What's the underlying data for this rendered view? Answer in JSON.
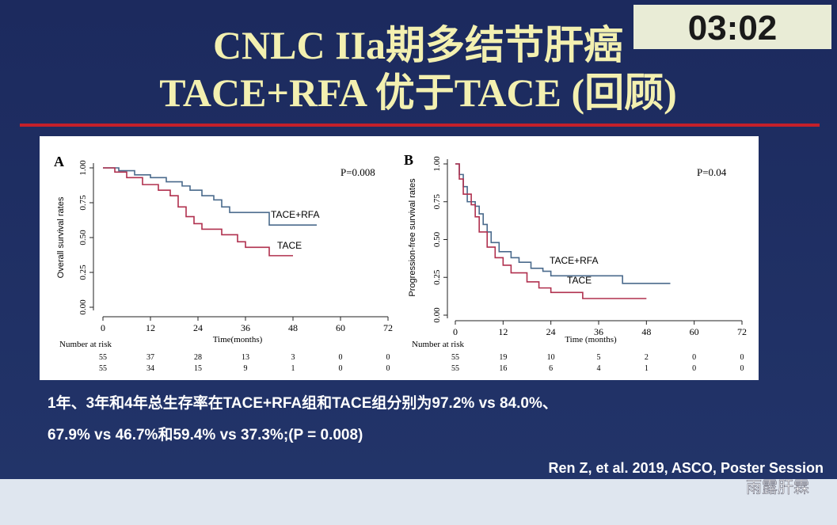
{
  "slide": {
    "title_line1": "CNLC IIa期多结节肝癌",
    "title_line2": "TACE+RFA 优于TACE (回顾)",
    "timer": "03:02",
    "summary_line1": "1年、3年和4年总生存率在TACE+RFA组和TACE组分别为97.2% vs 84.0%、",
    "summary_line2": "67.9% vs 46.7%和59.4% vs 37.3%;(P = 0.008)",
    "citation": "Ren Z, et al. 2019, ASCO, Poster Session",
    "watermark": "雨露肝霖"
  },
  "chart_data": [
    {
      "type": "line",
      "step": true,
      "panel": "A",
      "annotation": "P=0.008",
      "ylabel": "Overall survival rates",
      "xlabel": "Time(months)",
      "xlim": [
        0,
        72
      ],
      "xticks": [
        0,
        12,
        24,
        36,
        48,
        60,
        72
      ],
      "ylim": [
        0,
        1
      ],
      "yticks": [
        {
          "value": 0,
          "label": "0.00"
        },
        {
          "value": 0.25,
          "label": "0.25"
        },
        {
          "value": 0.5,
          "label": "0.50"
        },
        {
          "value": 0.75,
          "label": "0.75"
        },
        {
          "value": 1,
          "label": "1.00"
        }
      ],
      "series": [
        {
          "name": "TACE+RFA",
          "color": "#4a6a8c",
          "x": [
            0,
            4,
            4,
            8,
            8,
            12,
            12,
            16,
            16,
            20,
            20,
            22,
            22,
            25,
            25,
            28,
            28,
            30,
            30,
            32,
            32,
            42,
            42,
            54
          ],
          "values": [
            1,
            1,
            0.98,
            0.98,
            0.95,
            0.95,
            0.93,
            0.93,
            0.9,
            0.9,
            0.87,
            0.87,
            0.84,
            0.84,
            0.8,
            0.8,
            0.77,
            0.77,
            0.72,
            0.72,
            0.68,
            0.68,
            0.59,
            0.59
          ]
        },
        {
          "name": "TACE",
          "color": "#b0304e",
          "x": [
            0,
            3,
            3,
            6,
            6,
            10,
            10,
            14,
            14,
            17,
            17,
            19,
            19,
            21,
            21,
            23,
            23,
            25,
            25,
            30,
            30,
            34,
            34,
            36,
            36,
            42,
            42,
            48
          ],
          "values": [
            1,
            1,
            0.97,
            0.97,
            0.93,
            0.93,
            0.88,
            0.88,
            0.84,
            0.84,
            0.8,
            0.8,
            0.72,
            0.72,
            0.65,
            0.65,
            0.6,
            0.6,
            0.56,
            0.56,
            0.52,
            0.52,
            0.47,
            0.47,
            0.43,
            0.43,
            0.37,
            0.37
          ]
        }
      ],
      "risk_table": {
        "label": "Number at risk",
        "rows": [
          [
            55,
            37,
            28,
            13,
            3,
            0,
            0
          ],
          [
            55,
            34,
            15,
            9,
            1,
            0,
            0
          ]
        ]
      }
    },
    {
      "type": "line",
      "step": true,
      "panel": "B",
      "annotation": "P=0.04",
      "ylabel": "Progression-free survival rates",
      "xlabel": "Time (months)",
      "xlim": [
        0,
        72
      ],
      "xticks": [
        0,
        12,
        24,
        36,
        48,
        60,
        72
      ],
      "ylim": [
        0,
        1
      ],
      "yticks": [
        {
          "value": 0,
          "label": "0.00"
        },
        {
          "value": 0.25,
          "label": "0.25"
        },
        {
          "value": 0.5,
          "label": "0.50"
        },
        {
          "value": 0.75,
          "label": "0.75"
        },
        {
          "value": 1,
          "label": "1.00"
        }
      ],
      "series": [
        {
          "name": "TACE+RFA",
          "color": "#4a6a8c",
          "x": [
            0,
            1,
            1,
            2,
            2,
            3,
            3,
            5,
            5,
            6,
            6,
            7,
            7,
            8,
            8,
            9,
            9,
            11,
            11,
            14,
            14,
            16,
            16,
            19,
            19,
            22,
            22,
            24,
            24,
            42,
            42,
            54
          ],
          "values": [
            1,
            1,
            0.93,
            0.93,
            0.85,
            0.85,
            0.75,
            0.75,
            0.72,
            0.72,
            0.67,
            0.67,
            0.6,
            0.6,
            0.55,
            0.55,
            0.48,
            0.48,
            0.42,
            0.42,
            0.38,
            0.38,
            0.35,
            0.35,
            0.31,
            0.31,
            0.29,
            0.29,
            0.26,
            0.26,
            0.21,
            0.21
          ]
        },
        {
          "name": "TACE",
          "color": "#b0304e",
          "x": [
            0,
            1,
            1,
            2,
            2,
            4,
            4,
            5,
            5,
            6,
            6,
            8,
            8,
            10,
            10,
            12,
            12,
            14,
            14,
            18,
            18,
            21,
            21,
            24,
            24,
            32,
            32,
            48
          ],
          "values": [
            1,
            1,
            0.9,
            0.9,
            0.8,
            0.8,
            0.73,
            0.73,
            0.65,
            0.65,
            0.55,
            0.55,
            0.45,
            0.45,
            0.38,
            0.38,
            0.33,
            0.33,
            0.28,
            0.28,
            0.22,
            0.22,
            0.18,
            0.18,
            0.15,
            0.15,
            0.11,
            0.11
          ]
        }
      ],
      "risk_table": {
        "label": "Number at risk",
        "rows": [
          [
            55,
            19,
            10,
            5,
            2,
            0,
            0
          ],
          [
            55,
            16,
            6,
            4,
            1,
            0,
            0
          ]
        ]
      }
    }
  ]
}
